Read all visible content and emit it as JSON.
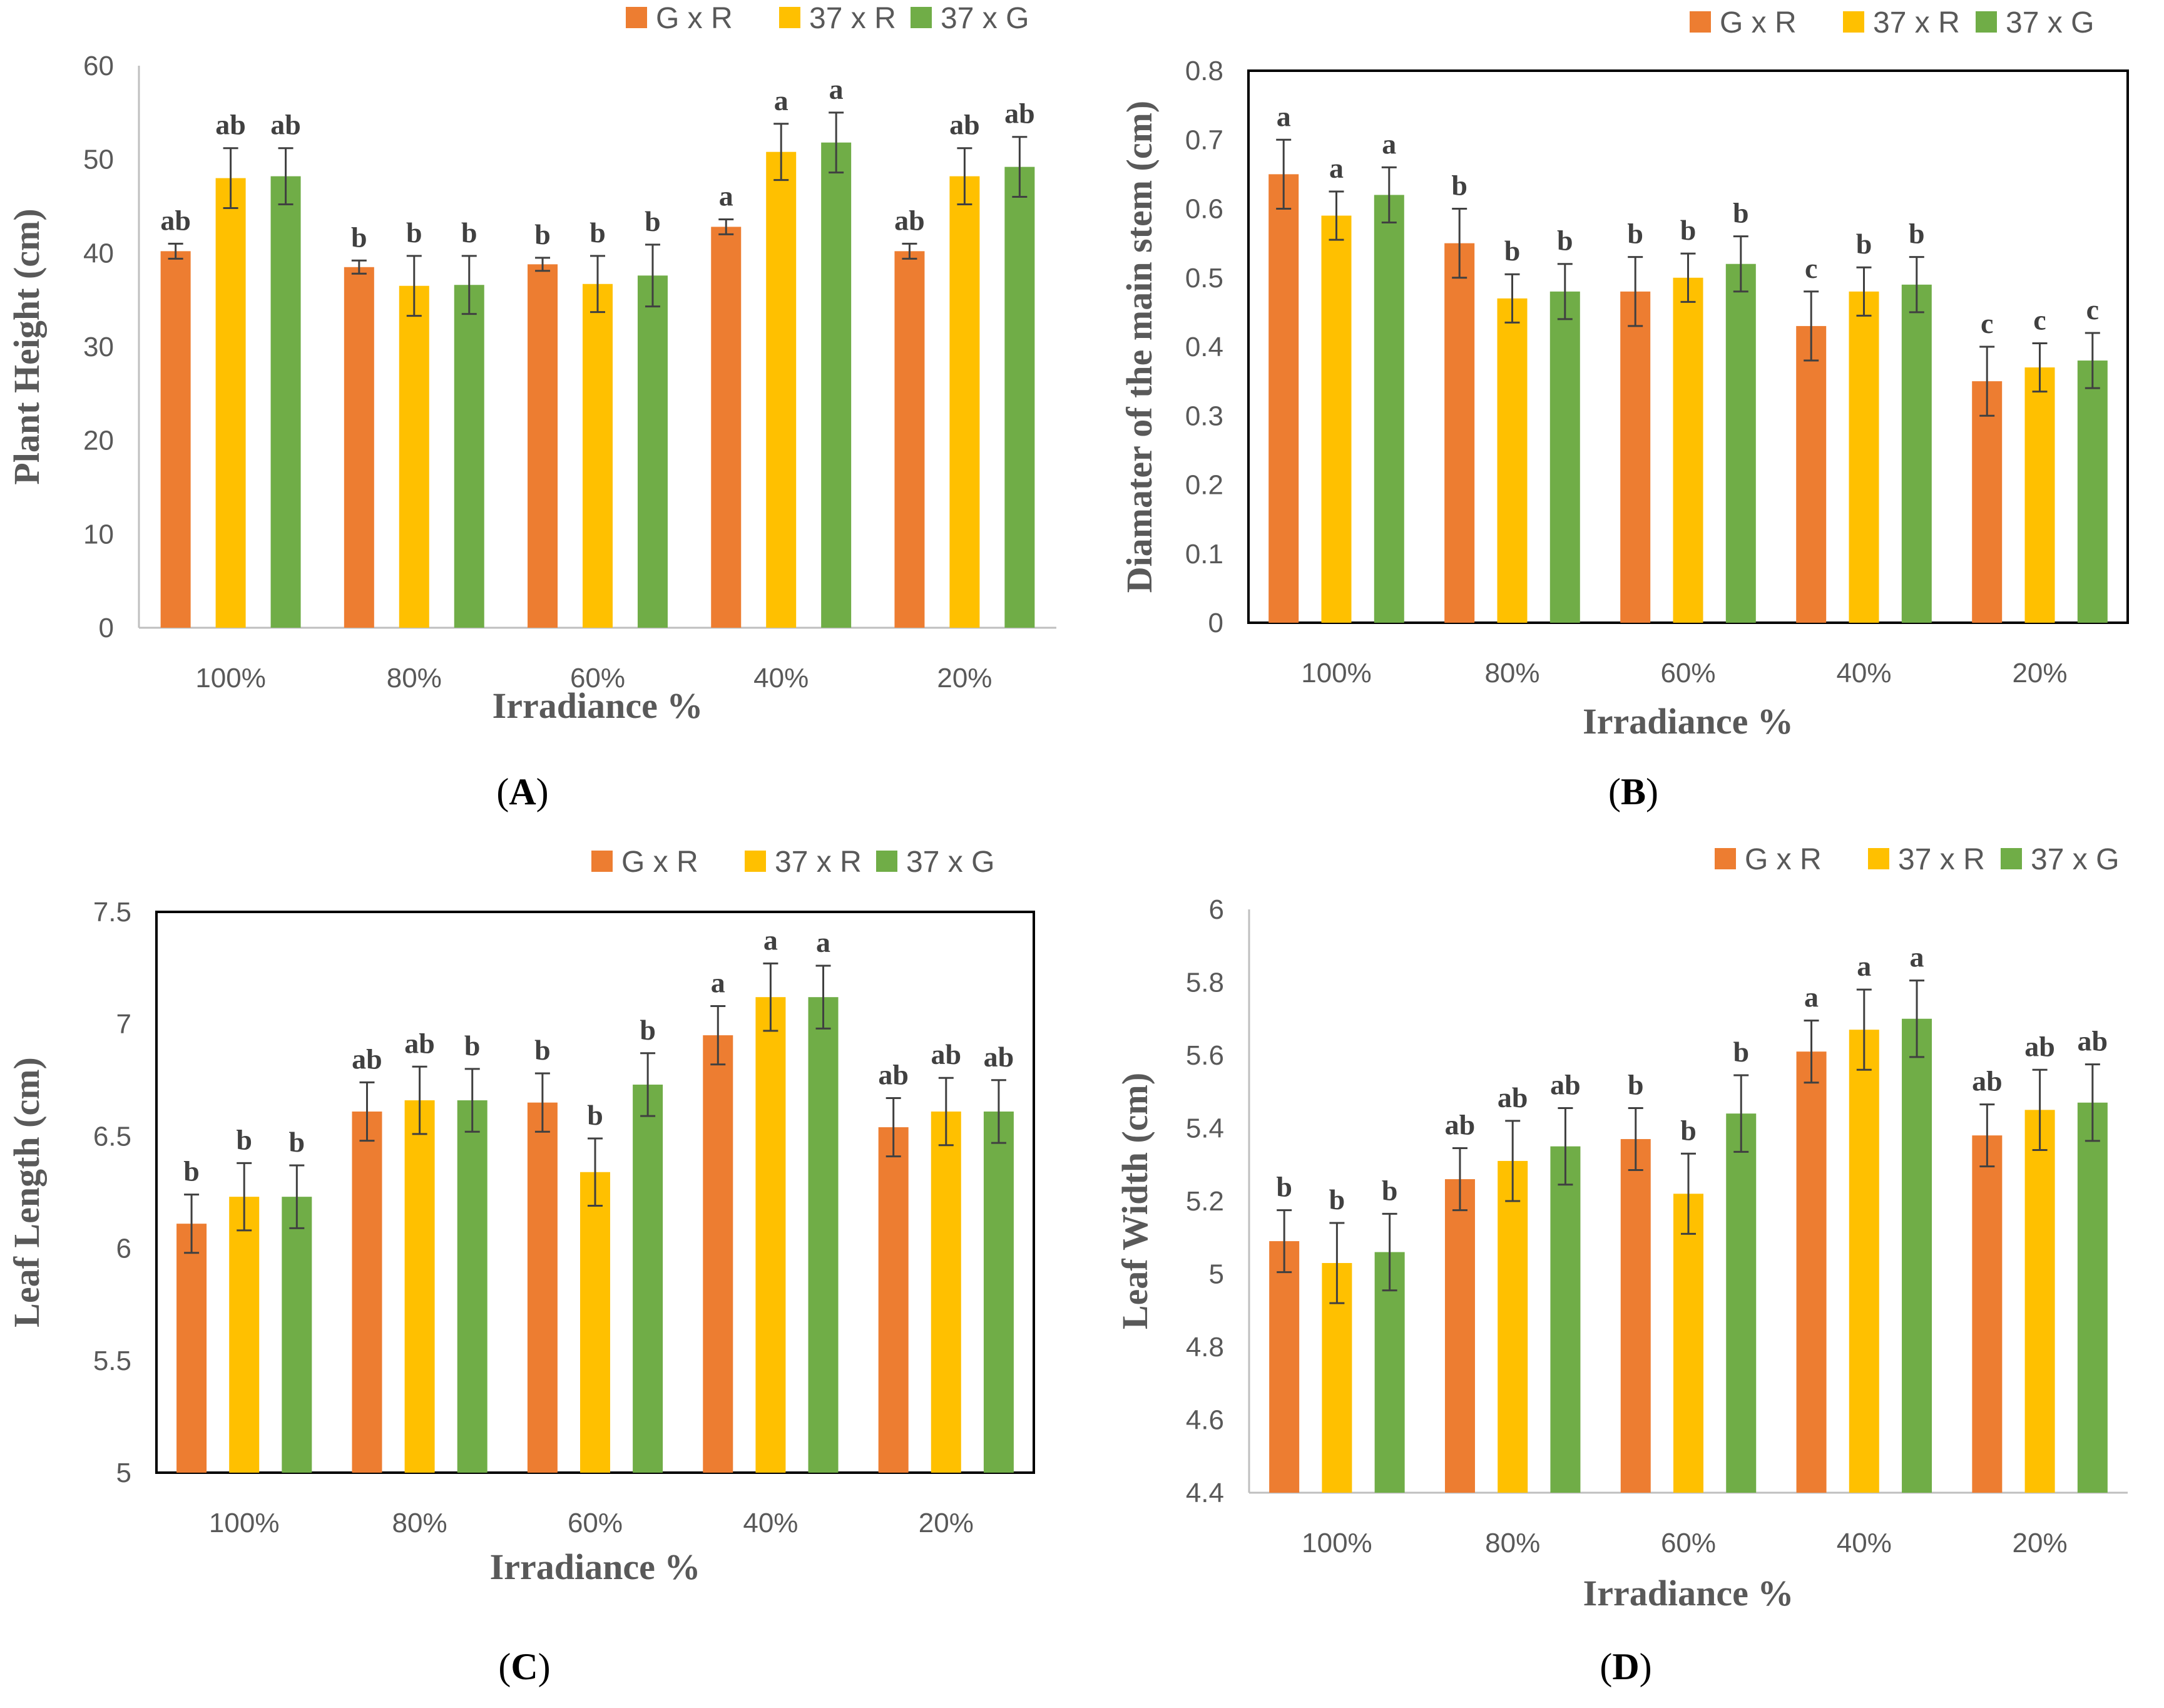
{
  "chart_data": [
    {
      "id": "A",
      "panel_label": "A",
      "type": "bar",
      "categories": [
        "100%",
        "80%",
        "60%",
        "40%",
        "20%"
      ],
      "series": [
        {
          "name": "G x R",
          "color": "#ED7D31",
          "values": [
            40.2,
            38.5,
            38.8,
            42.8,
            40.2
          ],
          "errors": [
            0.8,
            0.7,
            0.7,
            0.8,
            0.8
          ],
          "labels": [
            "ab",
            "b",
            "b",
            "a",
            "ab"
          ]
        },
        {
          "name": "37 x R",
          "color": "#FFC000",
          "values": [
            48.0,
            36.5,
            36.7,
            50.8,
            48.2
          ],
          "errors": [
            3.2,
            3.2,
            3.0,
            3.0,
            3.0
          ],
          "labels": [
            "ab",
            "b",
            "b",
            "a",
            "ab"
          ]
        },
        {
          "name": "37 x G",
          "color": "#70AD47",
          "values": [
            48.2,
            36.6,
            37.6,
            51.8,
            49.2
          ],
          "errors": [
            3.0,
            3.1,
            3.3,
            3.2,
            3.2
          ],
          "labels": [
            "ab",
            "b",
            "b",
            "a",
            "ab"
          ]
        }
      ],
      "xlabel": "Irradiance %",
      "ylabel": "Plant Height (cm)",
      "ylim": [
        0,
        60
      ],
      "yticks": [
        "0",
        "10",
        "20",
        "30",
        "40",
        "50",
        "60"
      ],
      "legend": "top-right"
    },
    {
      "id": "B",
      "panel_label": "B",
      "type": "bar",
      "categories": [
        "100%",
        "80%",
        "60%",
        "40%",
        "20%"
      ],
      "series": [
        {
          "name": "G x R",
          "color": "#ED7D31",
          "values": [
            0.65,
            0.55,
            0.48,
            0.43,
            0.35
          ],
          "errors": [
            0.05,
            0.05,
            0.05,
            0.05,
            0.05
          ],
          "labels": [
            "a",
            "b",
            "b",
            "c",
            "c"
          ]
        },
        {
          "name": "37 x R",
          "color": "#FFC000",
          "values": [
            0.59,
            0.47,
            0.5,
            0.48,
            0.37
          ],
          "errors": [
            0.035,
            0.035,
            0.035,
            0.035,
            0.035
          ],
          "labels": [
            "a",
            "b",
            "b",
            "b",
            "c"
          ]
        },
        {
          "name": "37 x G",
          "color": "#70AD47",
          "values": [
            0.62,
            0.48,
            0.52,
            0.49,
            0.38
          ],
          "errors": [
            0.04,
            0.04,
            0.04,
            0.04,
            0.04
          ],
          "labels": [
            "a",
            "b",
            "b",
            "b",
            "c"
          ]
        }
      ],
      "xlabel": "Irradiance %",
      "ylabel": "Diamater of the main stem (cm)",
      "ylim": [
        0,
        0.8
      ],
      "yticks": [
        "0",
        "0.1",
        "0.2",
        "0.3",
        "0.4",
        "0.5",
        "0.6",
        "0.7",
        "0.8"
      ],
      "legend": "top-right"
    },
    {
      "id": "C",
      "panel_label": "C",
      "type": "bar",
      "categories": [
        "100%",
        "80%",
        "60%",
        "40%",
        "20%"
      ],
      "series": [
        {
          "name": "G x R",
          "color": "#ED7D31",
          "values": [
            6.11,
            6.61,
            6.65,
            6.95,
            6.54
          ],
          "errors": [
            0.13,
            0.13,
            0.13,
            0.13,
            0.13
          ],
          "labels": [
            "b",
            "ab",
            "b",
            "a",
            "ab"
          ]
        },
        {
          "name": "37 x R",
          "color": "#FFC000",
          "values": [
            6.23,
            6.66,
            6.34,
            7.12,
            6.61
          ],
          "errors": [
            0.15,
            0.15,
            0.15,
            0.15,
            0.15
          ],
          "labels": [
            "b",
            "ab",
            "b",
            "a",
            "ab"
          ]
        },
        {
          "name": "37 x G",
          "color": "#70AD47",
          "values": [
            6.23,
            6.66,
            6.73,
            7.12,
            6.61
          ],
          "errors": [
            0.14,
            0.14,
            0.14,
            0.14,
            0.14
          ],
          "labels": [
            "b",
            "b",
            "b",
            "a",
            "ab"
          ]
        }
      ],
      "xlabel": "Irradiance %",
      "ylabel": "Leaf Length (cm)",
      "ylim": [
        5,
        7.5
      ],
      "yticks": [
        "5",
        "5.5",
        "6",
        "6.5",
        "7",
        "7.5"
      ],
      "legend": "top-right"
    },
    {
      "id": "D",
      "panel_label": "D",
      "type": "bar",
      "categories": [
        "100%",
        "80%",
        "60%",
        "40%",
        "20%"
      ],
      "series": [
        {
          "name": "G x R",
          "color": "#ED7D31",
          "values": [
            5.09,
            5.26,
            5.37,
            5.61,
            5.38
          ],
          "errors": [
            0.085,
            0.085,
            0.085,
            0.085,
            0.085
          ],
          "labels": [
            "b",
            "ab",
            "b",
            "a",
            "ab"
          ]
        },
        {
          "name": "37 x R",
          "color": "#FFC000",
          "values": [
            5.03,
            5.31,
            5.22,
            5.67,
            5.45
          ],
          "errors": [
            0.11,
            0.11,
            0.11,
            0.11,
            0.11
          ],
          "labels": [
            "b",
            "ab",
            "b",
            "a",
            "ab"
          ]
        },
        {
          "name": "37 x G",
          "color": "#70AD47",
          "values": [
            5.06,
            5.35,
            5.44,
            5.7,
            5.47
          ],
          "errors": [
            0.105,
            0.105,
            0.105,
            0.105,
            0.105
          ],
          "labels": [
            "b",
            "ab",
            "b",
            "a",
            "ab"
          ]
        }
      ],
      "xlabel": "Irradiance %",
      "ylabel": "Leaf Width (cm)",
      "ylim": [
        4.4,
        6
      ],
      "yticks": [
        "4.4",
        "4.6",
        "4.8",
        "5",
        "5.2",
        "5.4",
        "5.6",
        "5.8",
        "6"
      ],
      "legend": "top-right"
    }
  ]
}
